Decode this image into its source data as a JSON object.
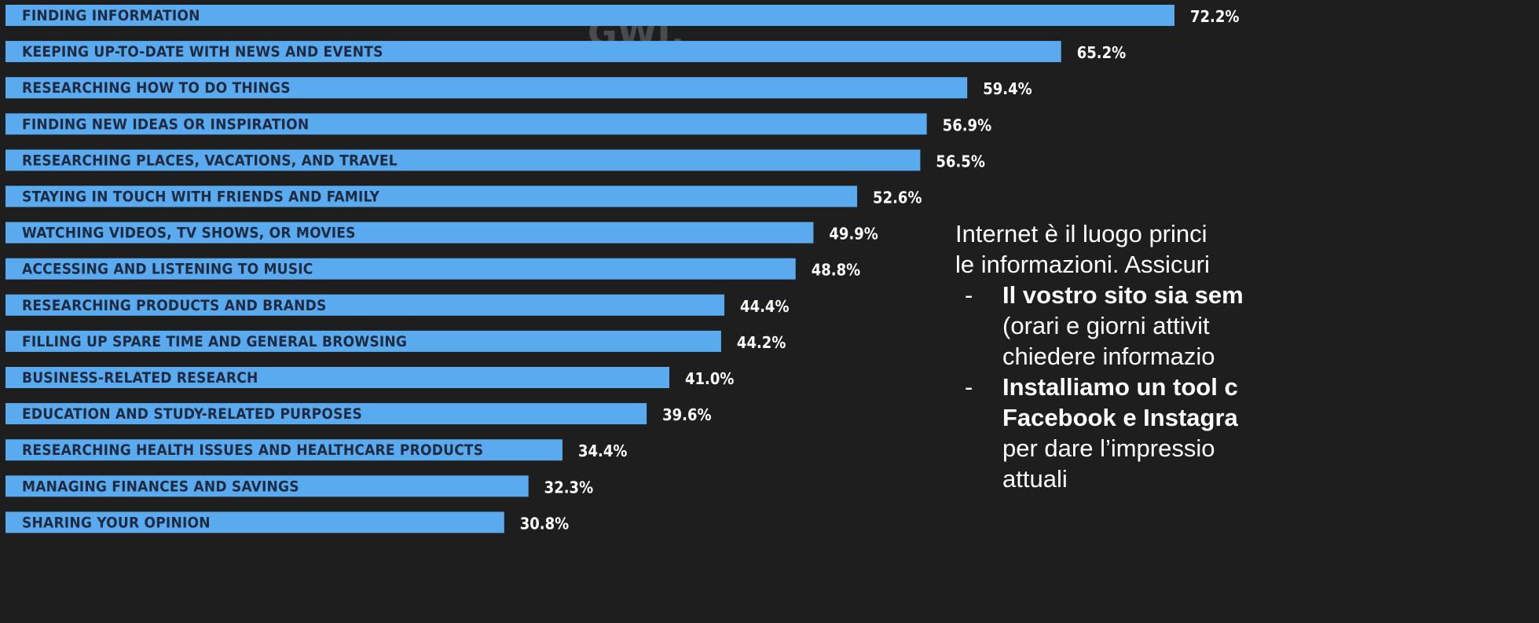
{
  "watermark": "GWI.",
  "chart_data": {
    "type": "bar",
    "orientation": "horizontal",
    "categories": [
      "FINDING INFORMATION",
      "KEEPING UP-TO-DATE WITH NEWS AND EVENTS",
      "RESEARCHING HOW TO DO THINGS",
      "FINDING NEW IDEAS OR INSPIRATION",
      "RESEARCHING PLACES, VACATIONS, AND TRAVEL",
      "STAYING IN TOUCH WITH FRIENDS AND FAMILY",
      "WATCHING VIDEOS, TV SHOWS, OR MOVIES",
      "ACCESSING AND LISTENING TO MUSIC",
      "RESEARCHING PRODUCTS AND BRANDS",
      "FILLING UP SPARE TIME AND GENERAL BROWSING",
      "BUSINESS-RELATED RESEARCH",
      "EDUCATION AND STUDY-RELATED PURPOSES",
      "RESEARCHING HEALTH ISSUES AND HEALTHCARE PRODUCTS",
      "MANAGING FINANCES AND SAVINGS",
      "SHARING YOUR OPINION"
    ],
    "values": [
      72.2,
      65.2,
      59.4,
      56.9,
      56.5,
      52.6,
      49.9,
      48.8,
      44.4,
      44.2,
      41.0,
      39.6,
      34.4,
      32.3,
      30.8
    ],
    "value_labels": [
      "72.2%",
      "65.2%",
      "59.4%",
      "56.9%",
      "56.5%",
      "52.6%",
      "49.9%",
      "48.8%",
      "44.4%",
      "44.2%",
      "41.0%",
      "39.6%",
      "34.4%",
      "32.3%",
      "30.8%"
    ],
    "bar_color": "#5aaaf0",
    "xlim": [
      0,
      72.2
    ],
    "grid": false,
    "title": "",
    "xlabel": "",
    "ylabel": ""
  },
  "side_text": {
    "intro_line1": "Internet è il luogo princi",
    "intro_line2": "le informazioni. Assicuri",
    "bullet_dash": "-",
    "b1_bold": "Il vostro sito sia sem",
    "b1_line2": "(orari e giorni attivit",
    "b1_line3": "chiedere informazio",
    "b2_bold1": "Installiamo un tool c",
    "b2_bold2": "Facebook e Instagra",
    "b2_line3": "per dare l’impressio",
    "b2_line4": "attuali"
  }
}
